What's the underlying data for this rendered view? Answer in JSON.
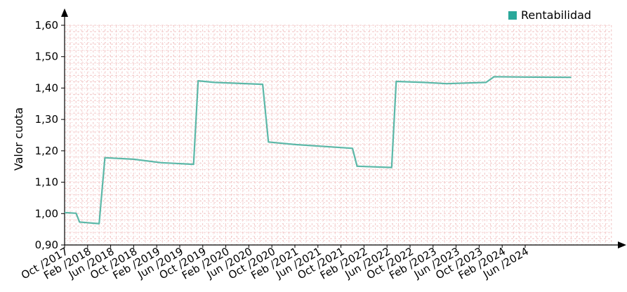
{
  "chart_data": {
    "type": "line",
    "ylabel": "Valor cuota",
    "ylim": [
      0.9,
      1.6
    ],
    "yticks": [
      "0,90",
      "1,00",
      "1,10",
      "1,20",
      "1,30",
      "1,40",
      "1,50",
      "1,60"
    ],
    "grid": true,
    "legend_position": "top-right",
    "line_color": "#5cb8a8",
    "legend_color": "#2aa89a",
    "categories": [
      "Oct /2017",
      "Feb /2018",
      "Jun /2018",
      "Oct /2018",
      "Feb /2019",
      "Jun /2019",
      "Oct /2019",
      "Feb /2020",
      "Jun /2020",
      "Oct /2020",
      "Feb /2021",
      "Jun /2021",
      "Oct /2021",
      "Feb /2022",
      "Jun /2022",
      "Oct /2022",
      "Feb /2023",
      "Jun /2023",
      "Oct /2023",
      "Feb /2024",
      "Jun /2024"
    ],
    "series": [
      {
        "name": "Rentabilidad",
        "points": [
          [
            0,
            1.003
          ],
          [
            0.5,
            1.001
          ],
          [
            0.65,
            0.973
          ],
          [
            1.5,
            0.968
          ],
          [
            1.75,
            1.178
          ],
          [
            3.0,
            1.173
          ],
          [
            4.2,
            1.162
          ],
          [
            5.6,
            1.157
          ],
          [
            5.8,
            1.423
          ],
          [
            6.5,
            1.418
          ],
          [
            8.6,
            1.412
          ],
          [
            8.85,
            1.228
          ],
          [
            10.0,
            1.22
          ],
          [
            12.5,
            1.208
          ],
          [
            12.7,
            1.151
          ],
          [
            14.2,
            1.147
          ],
          [
            14.4,
            1.421
          ],
          [
            15.6,
            1.418
          ],
          [
            16.6,
            1.414
          ],
          [
            18.3,
            1.418
          ],
          [
            18.65,
            1.436
          ],
          [
            20.0,
            1.435
          ],
          [
            22.0,
            1.434
          ]
        ]
      }
    ]
  }
}
